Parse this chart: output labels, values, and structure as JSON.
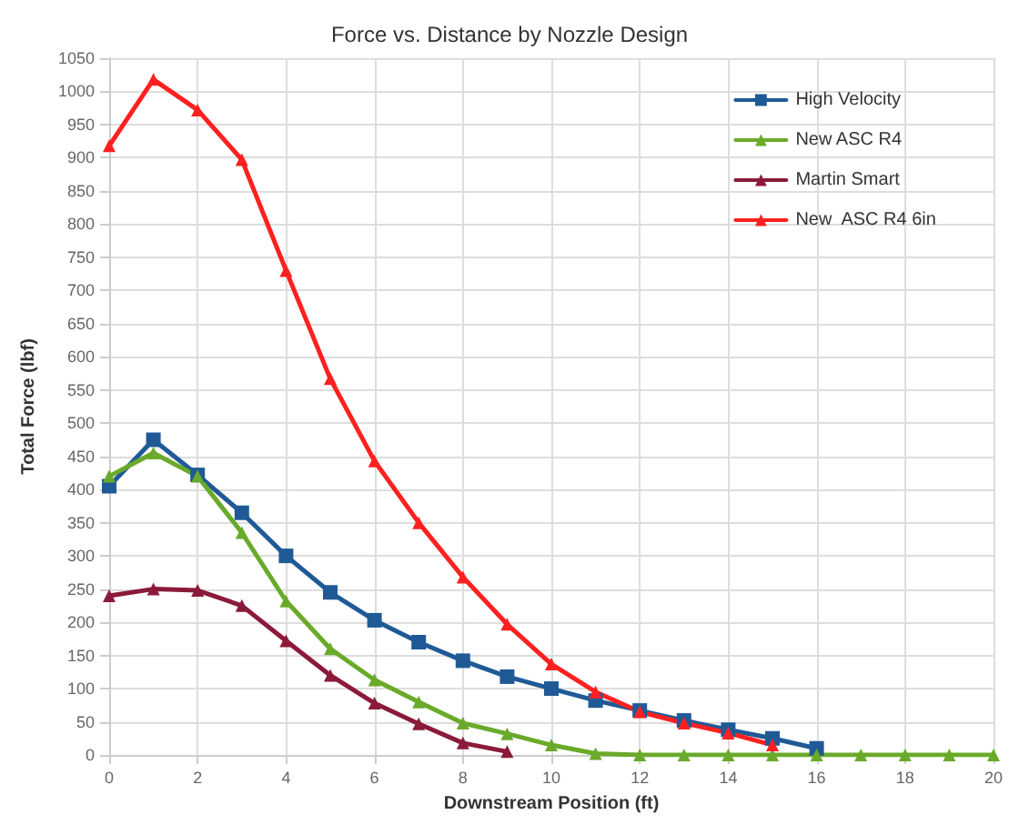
{
  "chart_data": {
    "type": "line",
    "title": "Force vs. Distance by Nozzle Design",
    "xlabel": "Downstream Position (ft)",
    "ylabel": "Total Force (lbf)",
    "x": [
      0,
      1,
      2,
      3,
      4,
      5,
      6,
      7,
      8,
      9,
      10,
      11,
      12,
      13,
      14,
      15,
      16,
      17,
      18,
      19,
      20
    ],
    "series": [
      {
        "name": "High Velocity",
        "color": "#1f5a96",
        "marker": "square",
        "values": [
          405,
          475,
          422,
          365,
          300,
          245,
          203,
          170,
          142,
          118,
          100,
          82,
          67,
          52,
          38,
          25,
          10,
          null,
          null,
          null,
          null
        ]
      },
      {
        "name": "New ASC R4",
        "color": "#6aaa2a",
        "marker": "triangle",
        "values": [
          420,
          455,
          420,
          335,
          232,
          160,
          113,
          80,
          48,
          32,
          15,
          2,
          0,
          0,
          0,
          0,
          0,
          0,
          0,
          0,
          0
        ]
      },
      {
        "name": "Martin Smart",
        "color": "#8b1a3a",
        "marker": "triangle",
        "values": [
          240,
          250,
          248,
          225,
          172,
          120,
          78,
          47,
          18,
          5,
          null,
          null,
          null,
          null,
          null,
          null,
          null,
          null,
          null,
          null,
          null
        ]
      },
      {
        "name": "New  ASC R4 6in",
        "color": "#ff2020",
        "marker": "triangle",
        "values": [
          918,
          1018,
          972,
          897,
          730,
          567,
          443,
          350,
          268,
          197,
          137,
          95,
          65,
          48,
          33,
          15,
          null,
          null,
          null,
          null,
          null
        ]
      }
    ],
    "xlim": [
      0,
      20
    ],
    "xticks": [
      0,
      2,
      4,
      6,
      8,
      10,
      12,
      14,
      16,
      18,
      20
    ],
    "ylim": [
      0,
      1050
    ],
    "yticks": [
      0,
      50,
      100,
      150,
      200,
      250,
      300,
      350,
      400,
      450,
      500,
      550,
      600,
      650,
      700,
      750,
      800,
      850,
      900,
      950,
      1000,
      1050
    ],
    "grid": true,
    "legend": "top right",
    "line_style": "solid"
  }
}
